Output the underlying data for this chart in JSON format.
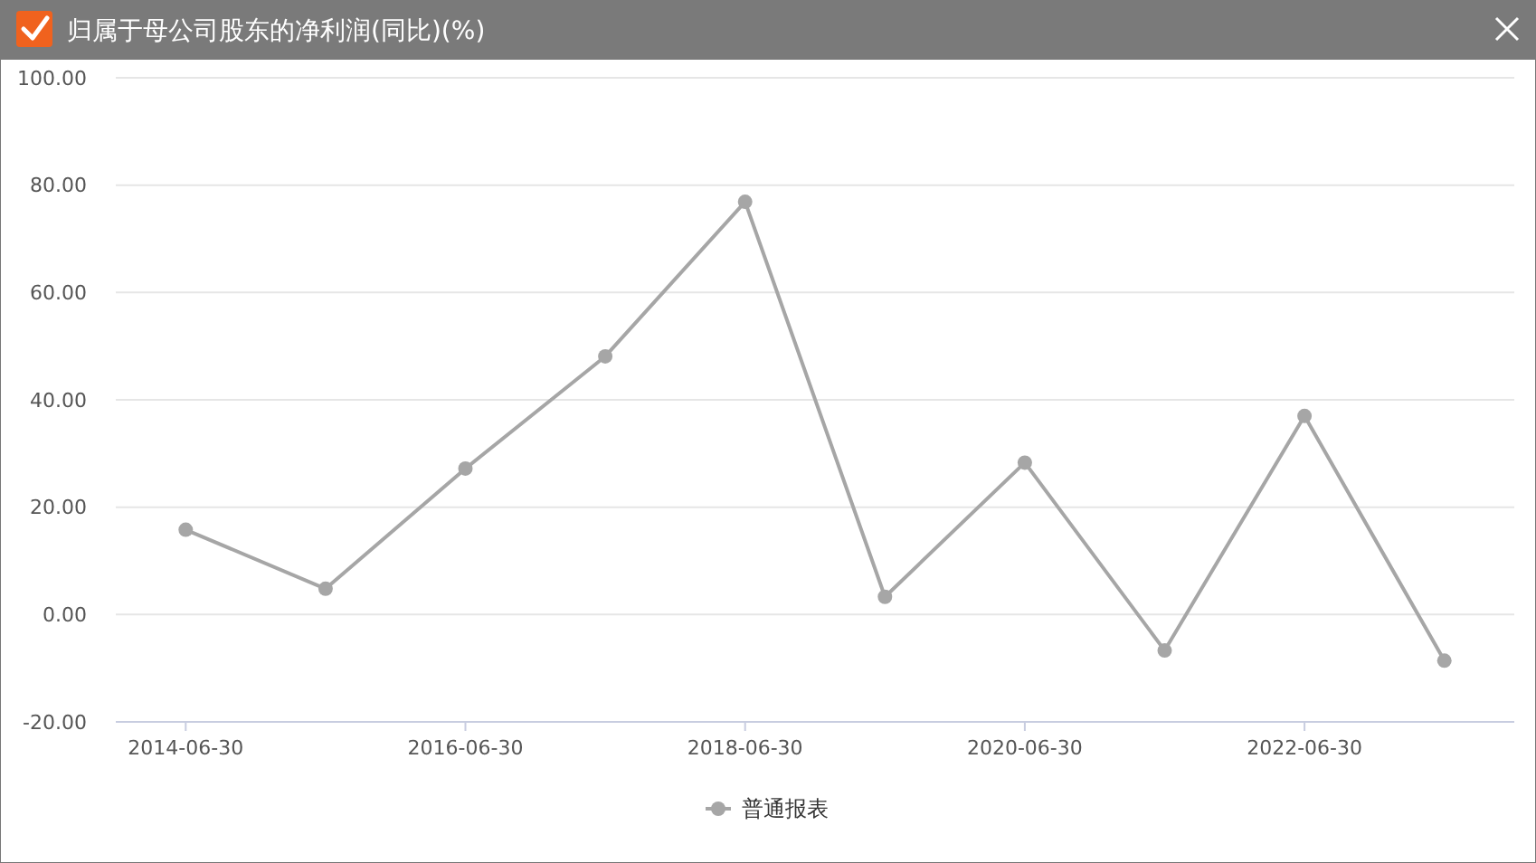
{
  "chart_data": {
    "type": "line",
    "title": "归属于母公司股东的净利润(同比)(%)",
    "categories": [
      "2014-06-30",
      null,
      "2016-06-30",
      null,
      "2018-06-30",
      null,
      "2020-06-30",
      null,
      "2022-06-30",
      null
    ],
    "series": [
      {
        "name": "普通报表",
        "color": "#a6a6a6",
        "values": [
          15.8,
          4.8,
          27.2,
          48.1,
          76.9,
          3.3,
          28.3,
          -6.7,
          37.0,
          -8.6
        ]
      }
    ],
    "ylim": [
      -20,
      100
    ],
    "yticks": [
      {
        "value": -20,
        "label": "-20.00"
      },
      {
        "value": 0,
        "label": "0.00"
      },
      {
        "value": 20,
        "label": "20.00"
      },
      {
        "value": 40,
        "label": "40.00"
      },
      {
        "value": 60,
        "label": "60.00"
      },
      {
        "value": 80,
        "label": "80.00"
      },
      {
        "value": 100,
        "label": "100.00"
      }
    ],
    "grid": "y",
    "legend": "bottom",
    "marker": "circle",
    "line_style": "solid"
  }
}
